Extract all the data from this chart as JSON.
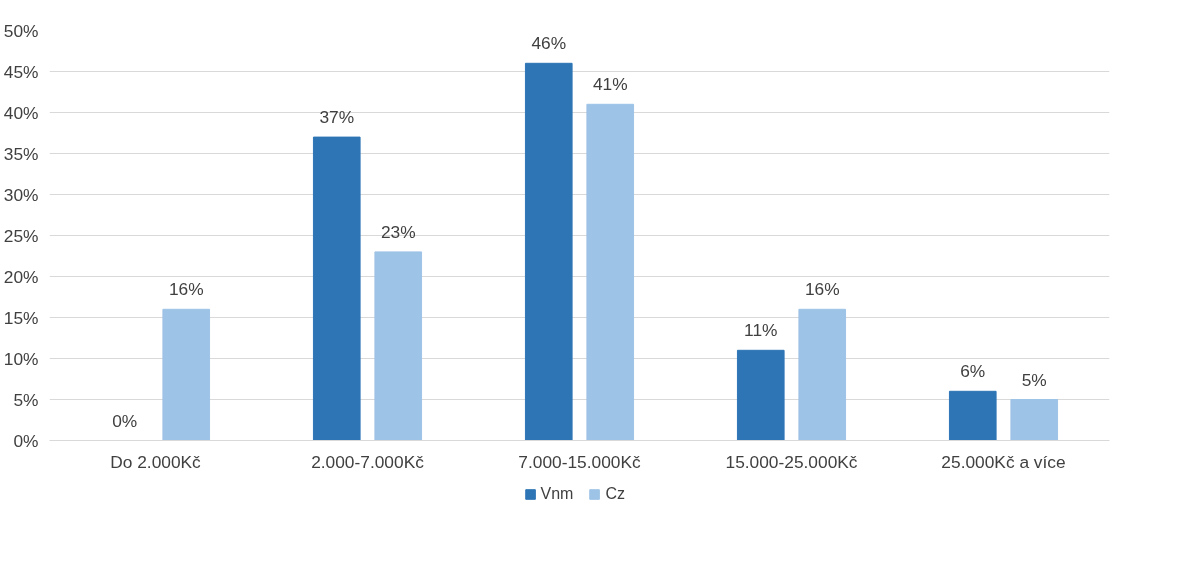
{
  "chart_data": {
    "type": "bar",
    "categories": [
      "Do 2.000Kč",
      "2.000-7.000Kč",
      "7.000-15.000Kč",
      "15.000-25.000Kč",
      "25.000Kč a více"
    ],
    "series": [
      {
        "name": "Vnm",
        "color": "#2e75b6",
        "values": [
          0,
          37,
          46,
          11,
          6
        ],
        "value_labels": [
          "0%",
          "37%",
          "46%",
          "11%",
          "6%"
        ]
      },
      {
        "name": "Cz",
        "color": "#9dc3e6",
        "values": [
          16,
          23,
          41,
          16,
          5
        ],
        "value_labels": [
          "16%",
          "23%",
          "41%",
          "16%",
          "5%"
        ]
      }
    ],
    "ylim": [
      0,
      50
    ],
    "yticks": [
      {
        "value": 0,
        "label": "0%"
      },
      {
        "value": 5,
        "label": "5%"
      },
      {
        "value": 10,
        "label": "10%"
      },
      {
        "value": 15,
        "label": "15%"
      },
      {
        "value": 20,
        "label": "20%"
      },
      {
        "value": 25,
        "label": "25%"
      },
      {
        "value": 30,
        "label": "30%"
      },
      {
        "value": 35,
        "label": "35%"
      },
      {
        "value": 40,
        "label": "40%"
      },
      {
        "value": 45,
        "label": "45%"
      },
      {
        "value": 50,
        "label": "50%"
      }
    ],
    "grid": "y",
    "legend": "bottom"
  }
}
